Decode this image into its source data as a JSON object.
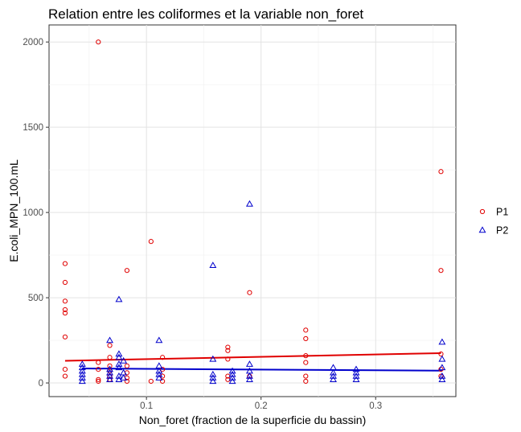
{
  "chart_data": {
    "type": "scatter",
    "title": "Relation entre les coliformes et la variable non_foret",
    "xlabel": "Non_foret (fraction de la superficie du bassin)",
    "ylabel": "E.coli_MPN_100.mL",
    "xlim": [
      0.015,
      0.37
    ],
    "ylim": [
      -80,
      2100
    ],
    "xticks": [
      0.1,
      0.2,
      0.3
    ],
    "xtick_labels": [
      "0.1",
      "0.2",
      "0.3"
    ],
    "yticks": [
      0,
      500,
      1000,
      1500,
      2000
    ],
    "ytick_labels": [
      "0",
      "500",
      "1000",
      "1500",
      "2000"
    ],
    "grid": true,
    "legend_position": "right",
    "series": [
      {
        "name": "P1",
        "color": "#e00000",
        "marker": "circle",
        "points": [
          [
            0.029,
            700
          ],
          [
            0.029,
            590
          ],
          [
            0.029,
            480
          ],
          [
            0.029,
            430
          ],
          [
            0.029,
            410
          ],
          [
            0.029,
            270
          ],
          [
            0.029,
            80
          ],
          [
            0.029,
            40
          ],
          [
            0.058,
            2000
          ],
          [
            0.058,
            120
          ],
          [
            0.058,
            80
          ],
          [
            0.058,
            20
          ],
          [
            0.058,
            10
          ],
          [
            0.068,
            220
          ],
          [
            0.068,
            150
          ],
          [
            0.068,
            100
          ],
          [
            0.068,
            70
          ],
          [
            0.068,
            40
          ],
          [
            0.068,
            20
          ],
          [
            0.083,
            660
          ],
          [
            0.083,
            100
          ],
          [
            0.083,
            60
          ],
          [
            0.083,
            30
          ],
          [
            0.083,
            10
          ],
          [
            0.104,
            830
          ],
          [
            0.104,
            10
          ],
          [
            0.114,
            150
          ],
          [
            0.114,
            80
          ],
          [
            0.114,
            40
          ],
          [
            0.114,
            10
          ],
          [
            0.171,
            210
          ],
          [
            0.171,
            190
          ],
          [
            0.171,
            140
          ],
          [
            0.171,
            40
          ],
          [
            0.171,
            20
          ],
          [
            0.19,
            530
          ],
          [
            0.19,
            40
          ],
          [
            0.239,
            310
          ],
          [
            0.239,
            260
          ],
          [
            0.239,
            160
          ],
          [
            0.239,
            120
          ],
          [
            0.239,
            40
          ],
          [
            0.239,
            10
          ],
          [
            0.357,
            1240
          ],
          [
            0.357,
            660
          ],
          [
            0.357,
            170
          ],
          [
            0.357,
            80
          ],
          [
            0.357,
            40
          ]
        ],
        "trend": [
          [
            0.029,
            130
          ],
          [
            0.357,
            175
          ]
        ]
      },
      {
        "name": "P2",
        "color": "#0000cc",
        "marker": "triangle",
        "points": [
          [
            0.044,
            110
          ],
          [
            0.044,
            90
          ],
          [
            0.044,
            70
          ],
          [
            0.044,
            50
          ],
          [
            0.044,
            30
          ],
          [
            0.044,
            10
          ],
          [
            0.068,
            250
          ],
          [
            0.068,
            80
          ],
          [
            0.068,
            60
          ],
          [
            0.068,
            40
          ],
          [
            0.068,
            20
          ],
          [
            0.076,
            490
          ],
          [
            0.076,
            170
          ],
          [
            0.076,
            150
          ],
          [
            0.076,
            110
          ],
          [
            0.076,
            90
          ],
          [
            0.076,
            40
          ],
          [
            0.076,
            20
          ],
          [
            0.08,
            130
          ],
          [
            0.08,
            60
          ],
          [
            0.08,
            30
          ],
          [
            0.111,
            250
          ],
          [
            0.111,
            100
          ],
          [
            0.111,
            70
          ],
          [
            0.111,
            50
          ],
          [
            0.111,
            30
          ],
          [
            0.158,
            690
          ],
          [
            0.158,
            140
          ],
          [
            0.158,
            50
          ],
          [
            0.158,
            30
          ],
          [
            0.158,
            10
          ],
          [
            0.175,
            70
          ],
          [
            0.175,
            50
          ],
          [
            0.175,
            30
          ],
          [
            0.175,
            10
          ],
          [
            0.19,
            1050
          ],
          [
            0.19,
            110
          ],
          [
            0.19,
            70
          ],
          [
            0.19,
            40
          ],
          [
            0.19,
            20
          ],
          [
            0.263,
            90
          ],
          [
            0.263,
            60
          ],
          [
            0.263,
            40
          ],
          [
            0.263,
            20
          ],
          [
            0.283,
            80
          ],
          [
            0.283,
            60
          ],
          [
            0.283,
            40
          ],
          [
            0.283,
            20
          ],
          [
            0.358,
            240
          ],
          [
            0.358,
            140
          ],
          [
            0.358,
            90
          ],
          [
            0.358,
            40
          ],
          [
            0.358,
            20
          ]
        ],
        "trend": [
          [
            0.044,
            85
          ],
          [
            0.358,
            72
          ]
        ]
      }
    ]
  }
}
